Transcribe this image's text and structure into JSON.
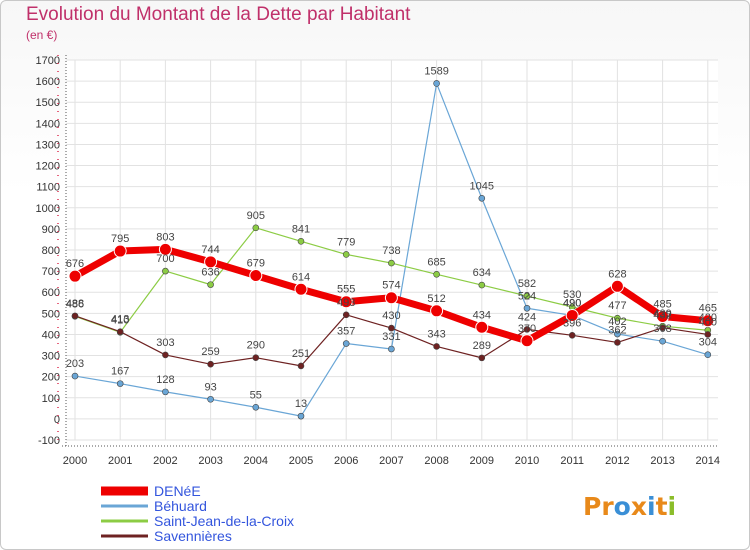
{
  "title": "Evolution du Montant de la Dette par Habitant",
  "subtitle": "(en €)",
  "logo": {
    "letters": [
      {
        "ch": "P",
        "color": "#e8891a"
      },
      {
        "ch": "r",
        "color": "#e8891a"
      },
      {
        "ch": "o",
        "color": "#3a8fd6"
      },
      {
        "ch": "x",
        "color": "#e8891a"
      },
      {
        "ch": "i",
        "color": "#3a8fd6"
      },
      {
        "ch": "t",
        "color": "#e8891a"
      },
      {
        "ch": "i",
        "color": "#8bbd2a"
      }
    ]
  },
  "chart_data": {
    "type": "line",
    "title": "Evolution du Montant de la Dette par Habitant",
    "subtitle": "(en €)",
    "xlabel": "",
    "ylabel": "",
    "ylim": [
      -100,
      1700
    ],
    "yticks": [
      -100,
      0,
      100,
      200,
      300,
      400,
      500,
      600,
      700,
      800,
      900,
      1000,
      1100,
      1200,
      1300,
      1400,
      1500,
      1600,
      1700
    ],
    "grid": true,
    "legend_position": "bottom-left",
    "categories": [
      "2000",
      "2001",
      "2002",
      "2003",
      "2004",
      "2005",
      "2006",
      "2007",
      "2008",
      "2009",
      "2010",
      "2011",
      "2012",
      "2013",
      "2014"
    ],
    "series": [
      {
        "name": "DENéE",
        "color": "#ee0000",
        "width": 7,
        "marker": 6,
        "values": [
          676,
          795,
          803,
          744,
          679,
          614,
          555,
          574,
          512,
          434,
          370,
          490,
          628,
          485,
          465
        ]
      },
      {
        "name": "Béhuard",
        "color": "#6aa6d6",
        "width": 1.2,
        "marker": 3,
        "values": [
          203,
          167,
          128,
          93,
          55,
          13,
          357,
          331,
          1589,
          1045,
          524,
          490,
          402,
          368,
          304
        ]
      },
      {
        "name": "Saint-Jean-de-la-Croix",
        "color": "#8ccc44",
        "width": 1.2,
        "marker": 3,
        "values": [
          486,
          410,
          700,
          636,
          905,
          841,
          779,
          738,
          685,
          634,
          582,
          530,
          477,
          439,
          420
        ]
      },
      {
        "name": "Savennières",
        "color": "#6e2222",
        "width": 1.2,
        "marker": 3,
        "values": [
          488,
          413,
          303,
          259,
          290,
          251,
          493,
          430,
          343,
          289,
          424,
          396,
          362,
          432,
          400
        ]
      }
    ]
  }
}
